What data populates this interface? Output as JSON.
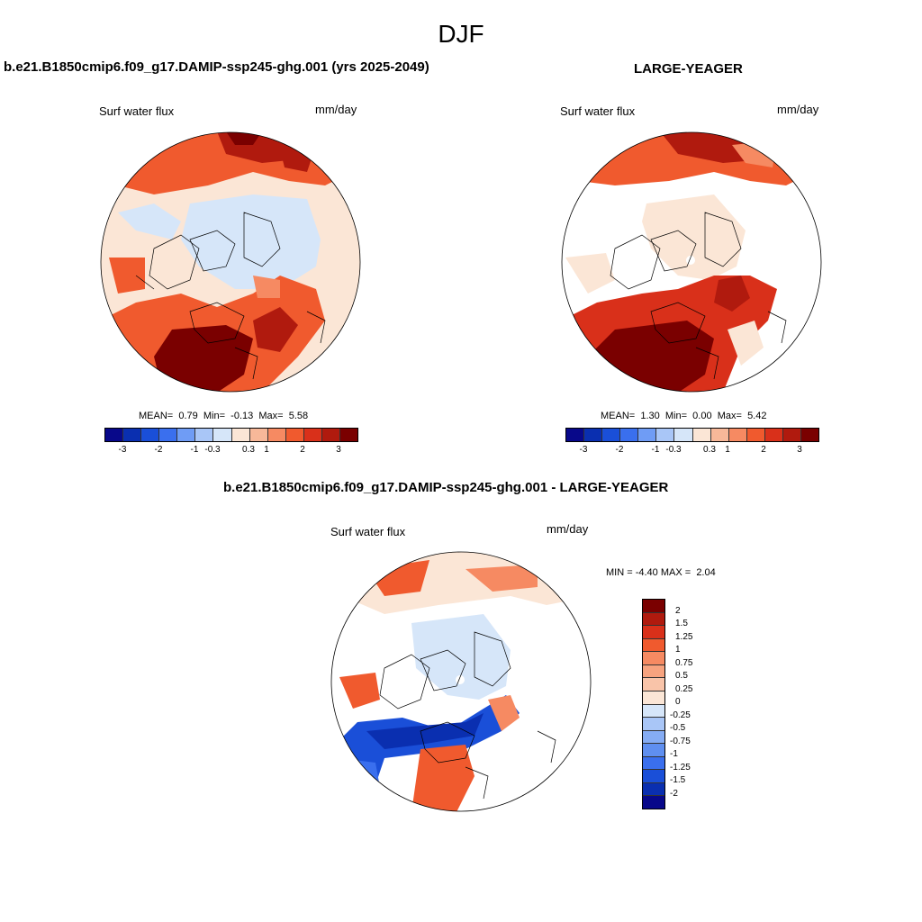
{
  "figure": {
    "title": "DJF",
    "panels": [
      {
        "case_title": "b.e21.B1850cmip6.f09_g17.DAMIP-ssp245-ghg.001 (yrs 2025-2049)",
        "variable": "Surf water flux",
        "units": "mm/day",
        "stats": {
          "mean_label": "MEAN=",
          "mean": "0.79",
          "min_label": "Min=",
          "min": "-0.13",
          "max_label": "Max=",
          "max": "5.58"
        }
      },
      {
        "case_title": "LARGE-YEAGER",
        "variable": "Surf water flux",
        "units": "mm/day",
        "stats": {
          "mean_label": "MEAN=",
          "mean": "1.30",
          "min_label": "Min=",
          "min": "0.00",
          "max_label": "Max=",
          "max": "5.42"
        }
      }
    ],
    "diff_panel": {
      "case_title": "b.e21.B1850cmip6.f09_g17.DAMIP-ssp245-ghg.001 - LARGE-YEAGER",
      "variable": "Surf water flux",
      "units": "mm/day",
      "stats": {
        "min_label": "MIN =",
        "min": "-4.40",
        "max_label": "MAX =",
        "max": "2.04"
      }
    },
    "colorbar_main": {
      "ticks": [
        "-3",
        "-2",
        "-1",
        "-0.3",
        "0.3",
        "1",
        "2",
        "3"
      ],
      "colors": [
        "#08088a",
        "#0a2fb0",
        "#1a4fd8",
        "#3a6fee",
        "#6f9cf5",
        "#a9c6f7",
        "#d6e6f9",
        "#fbe6d6",
        "#f7b899",
        "#f68a62",
        "#f05a2e",
        "#d9301a",
        "#b01a0e",
        "#7a0000"
      ]
    },
    "colorbar_diff": {
      "ticks": [
        "2",
        "1.5",
        "1.25",
        "1",
        "0.75",
        "0.5",
        "0.25",
        "0",
        "-0.25",
        "-0.5",
        "-0.75",
        "-1",
        "-1.25",
        "-1.5",
        "-2"
      ],
      "colors": [
        "#7a0000",
        "#b01a0e",
        "#d9301a",
        "#f05a2e",
        "#f68a62",
        "#f7a37f",
        "#f9c4a9",
        "#fbe6d6",
        "#d6e6f9",
        "#a9c6f7",
        "#85acf4",
        "#5f8ff0",
        "#3a6fee",
        "#1a4fd8",
        "#0a2fb0",
        "#08088a"
      ]
    }
  }
}
